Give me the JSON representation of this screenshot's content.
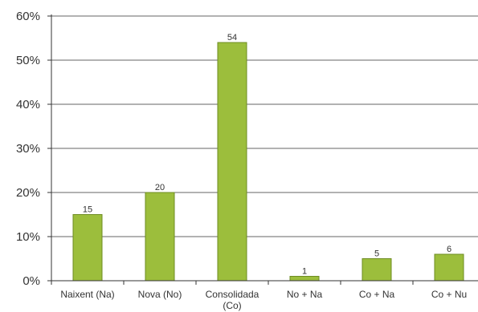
{
  "chart_data": {
    "type": "bar",
    "title": "",
    "xlabel": "",
    "ylabel": "",
    "categories": [
      [
        "Naixent (Na)"
      ],
      [
        "Nova (No)"
      ],
      [
        "Consolidada",
        "(Co)"
      ],
      [
        "No + Na"
      ],
      [
        "Co + Na"
      ],
      [
        "Co + Nu"
      ]
    ],
    "values": [
      15,
      20,
      54,
      1,
      5,
      6
    ],
    "data_labels": [
      "15",
      "20",
      "54",
      "1",
      "5",
      "6"
    ],
    "ylim": [
      0,
      60
    ],
    "yticks": [
      0,
      10,
      20,
      30,
      40,
      50,
      60
    ],
    "ytick_labels": [
      "0%",
      "10%",
      "20%",
      "30%",
      "40%",
      "50%",
      "60%"
    ],
    "grid": true,
    "legend": "none",
    "colors": {
      "bar_fill": "#9cbe3c",
      "bar_edge": "#6e8c22",
      "grid": "#666666",
      "axis": "#333333"
    }
  }
}
